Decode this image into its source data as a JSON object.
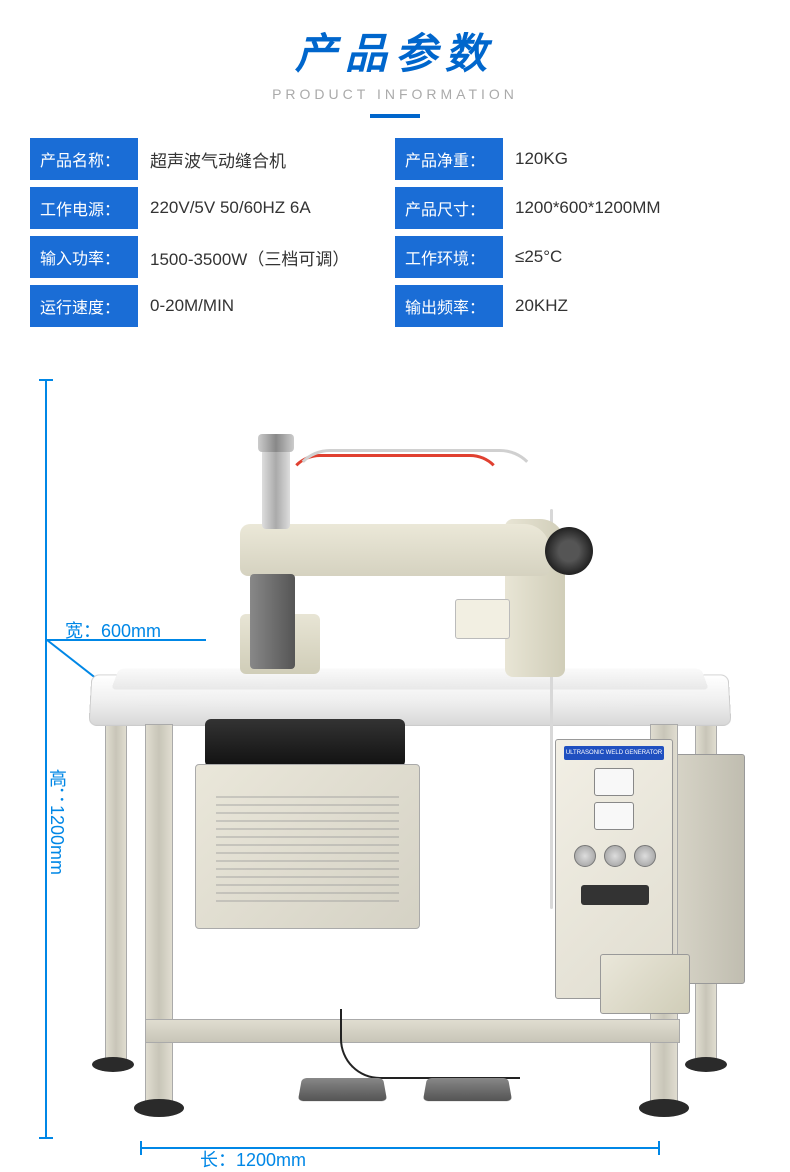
{
  "header": {
    "title_cn": "产品参数",
    "title_en": "PRODUCT INFORMATION"
  },
  "colors": {
    "primary": "#0066cc",
    "label_bg": "#1a6dd6",
    "dim_line": "#0087e6",
    "text": "#333333",
    "subtitle": "#aaaaaa"
  },
  "specs": {
    "left": [
      {
        "label": "产品名称：",
        "value": "超声波气动缝合机"
      },
      {
        "label": "工作电源：",
        "value": "220V/5V   50/60HZ 6A"
      },
      {
        "label": "输入功率：",
        "value": "1500-3500W（三档可调）"
      },
      {
        "label": "运行速度：",
        "value": "0-20M/MIN"
      }
    ],
    "right": [
      {
        "label": "产品净重：",
        "value": "120KG"
      },
      {
        "label": "产品尺寸：",
        "value": "1200*600*1200MM"
      },
      {
        "label": "工作环境：",
        "value": "≤25°C"
      },
      {
        "label": "输出频率：",
        "value": "20KHZ"
      }
    ]
  },
  "dimensions": {
    "width": "宽：600mm",
    "height": "高：1200mm",
    "length": "长：1200mm"
  },
  "control_label": "ULTRASONIC WELD GENERATOR"
}
